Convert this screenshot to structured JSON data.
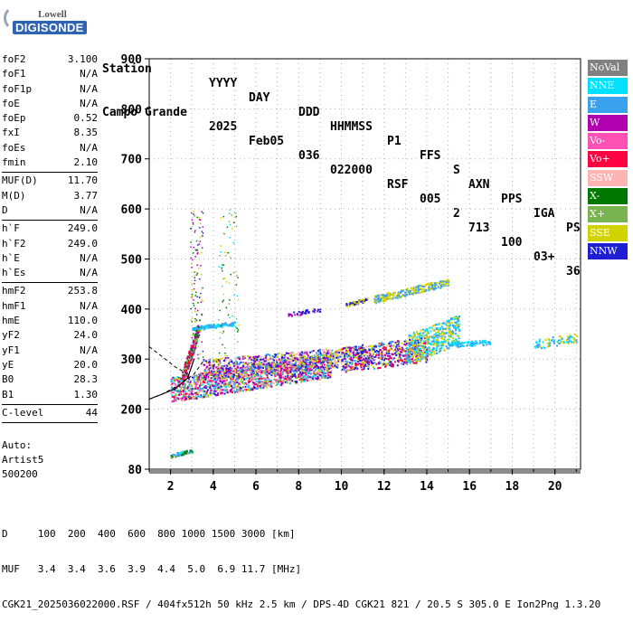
{
  "logo": {
    "brand": "Lowell",
    "product": "DIGISONDE"
  },
  "header": {
    "line1": [
      "Station",
      "YYYY",
      "DAY",
      "DDD",
      "HHMMSS",
      "P1",
      "FFS",
      "S",
      "AXN",
      "PPS",
      "IGA",
      "PS"
    ],
    "line2": [
      "Campo Grande",
      "2025",
      "Feb05",
      "036",
      "022000",
      "RSF",
      "005",
      "2",
      "713",
      "100",
      "03+",
      "36"
    ]
  },
  "params": [
    {
      "label": "foF2",
      "value": "3.100"
    },
    {
      "label": "foF1",
      "value": "N/A"
    },
    {
      "label": "foF1p",
      "value": "N/A"
    },
    {
      "label": "foE",
      "value": "N/A"
    },
    {
      "label": "foEp",
      "value": "0.52"
    },
    {
      "label": "fxI",
      "value": "8.35"
    },
    {
      "label": "foEs",
      "value": "N/A"
    },
    {
      "label": "fmin",
      "value": "2.10"
    },
    {
      "sep": true
    },
    {
      "label": "MUF(D)",
      "value": "11.70"
    },
    {
      "label": "M(D)",
      "value": "3.77"
    },
    {
      "label": "D",
      "value": "N/A"
    },
    {
      "sep": true
    },
    {
      "label": "h`F",
      "value": "249.0"
    },
    {
      "label": "h`F2",
      "value": "249.0"
    },
    {
      "label": "h`E",
      "value": "N/A"
    },
    {
      "label": "h`Es",
      "value": "N/A"
    },
    {
      "sep": true
    },
    {
      "label": "hmF2",
      "value": "253.8"
    },
    {
      "label": "hmF1",
      "value": "N/A"
    },
    {
      "label": "hmE",
      "value": "110.0"
    },
    {
      "label": "yF2",
      "value": "24.0"
    },
    {
      "label": "yF1",
      "value": "N/A"
    },
    {
      "label": "yE",
      "value": "20.0"
    },
    {
      "label": "B0",
      "value": "28.3"
    },
    {
      "label": "B1",
      "value": "1.30"
    },
    {
      "sep": true
    },
    {
      "label": "C-level",
      "value": "44"
    },
    {
      "sep": true
    }
  ],
  "auto": {
    "line1": "Auto:",
    "line2": "Artist5",
    "line3": "500200"
  },
  "legend": [
    {
      "label": "NoVal",
      "color": "#808080"
    },
    {
      "label": "NNE",
      "color": "#00e1ff"
    },
    {
      "label": "E",
      "color": "#3aa0f0"
    },
    {
      "label": "W",
      "color": "#b000b0"
    },
    {
      "label": "Vo-",
      "color": "#ff50b4"
    },
    {
      "label": "Vo+",
      "color": "#ff0040"
    },
    {
      "label": "SSW",
      "color": "#ffb4b4"
    },
    {
      "label": "X-",
      "color": "#007800"
    },
    {
      "label": "X+",
      "color": "#78b450"
    },
    {
      "label": "SSE",
      "color": "#d2d200"
    },
    {
      "label": "NNW",
      "color": "#1e1ed2"
    }
  ],
  "axes": {
    "x_ticks": [
      "2",
      "4",
      "6",
      "8",
      "10",
      "12",
      "14",
      "16",
      "18",
      "20"
    ],
    "y_ticks": [
      "80",
      "200",
      "300",
      "400",
      "500",
      "600",
      "700",
      "800",
      "900"
    ]
  },
  "bottom": {
    "line1": "D     100  200  400  600  800 1000 1500 3000 [km]",
    "line2": "MUF   3.4  3.4  3.6  3.9  4.4  5.0  6.9 11.7 [MHz]",
    "line3": "CGK21_2025036022000.RSF / 404fx512h 50 kHz 2.5 km / DPS-4D CGK21 821 / 20.5 S 305.0 E Ion2Png 1.3.20"
  }
}
